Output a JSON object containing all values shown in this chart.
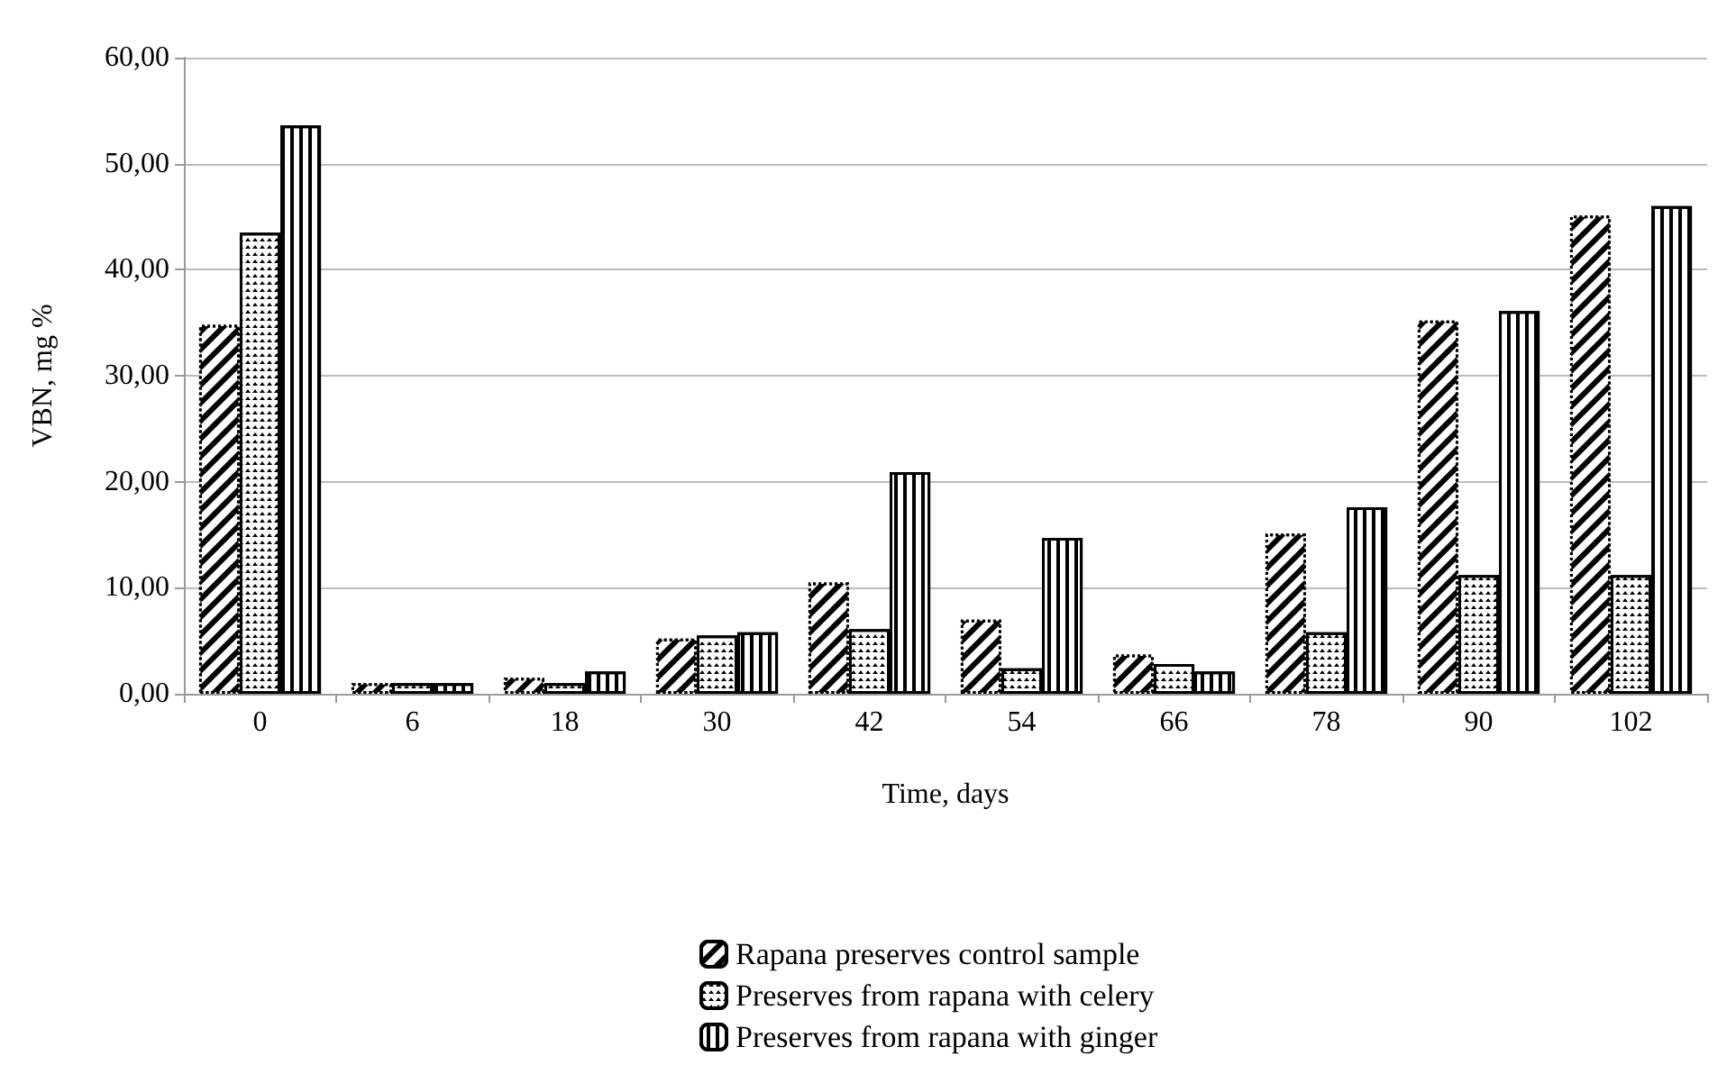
{
  "chart_data": {
    "type": "bar",
    "xlabel": "Time, days",
    "ylabel": "VBN, mg %",
    "categories": [
      "0",
      "6",
      "18",
      "30",
      "42",
      "54",
      "66",
      "78",
      "90",
      "102"
    ],
    "series": [
      {
        "name": "Rapana preserves control sample",
        "color": "#000000",
        "values": [
          34.8,
          1.0,
          1.5,
          5.2,
          10.5,
          7.0,
          3.7,
          15.1,
          35.2,
          45.1
        ]
      },
      {
        "name": "Preserves from rapana with celery",
        "color": "#000000",
        "values": [
          43.5,
          1.0,
          1.0,
          5.5,
          6.1,
          2.4,
          2.8,
          5.8,
          11.2,
          11.2
        ]
      },
      {
        "name": "Preserves from rapana with ginger",
        "color": "#000000",
        "values": [
          53.6,
          1.0,
          2.1,
          5.8,
          20.9,
          14.7,
          2.1,
          17.6,
          36.1,
          46.0
        ]
      }
    ],
    "ylim": [
      0,
      60
    ],
    "yticks": [
      {
        "value": 0,
        "label": "0,00"
      },
      {
        "value": 10,
        "label": "10,00"
      },
      {
        "value": 20,
        "label": "20,00"
      },
      {
        "value": 30,
        "label": "30,00"
      },
      {
        "value": 40,
        "label": "40,00"
      },
      {
        "value": 50,
        "label": "50,00"
      },
      {
        "value": 60,
        "label": "60,00"
      }
    ],
    "grid": "y",
    "legend": "bottom"
  }
}
